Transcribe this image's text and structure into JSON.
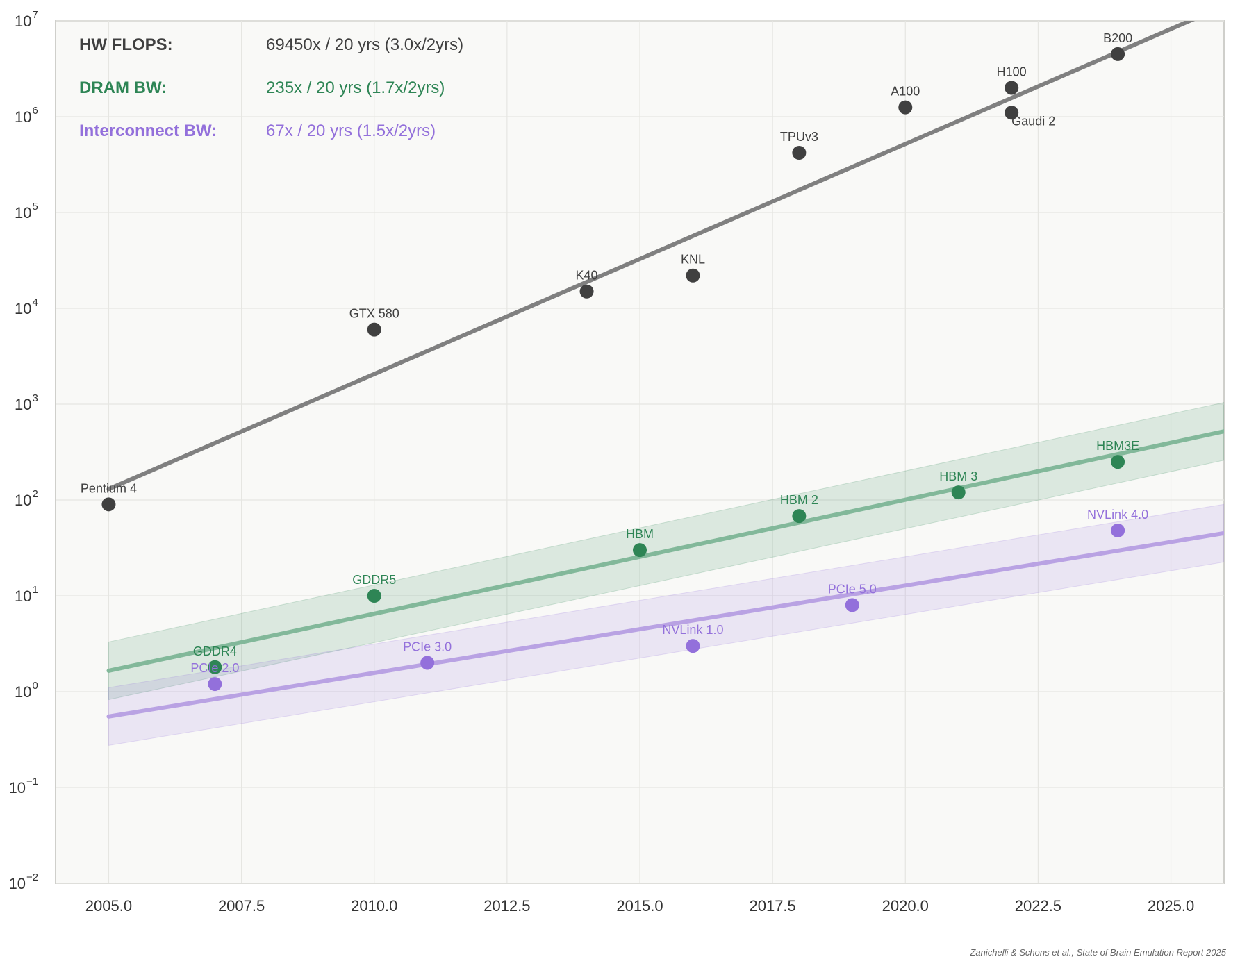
{
  "chart_data": {
    "type": "scatter",
    "yscale": "log",
    "xlim": [
      2004,
      2026
    ],
    "ylim": [
      0.01,
      10000000
    ],
    "x_ticks": [
      2005.0,
      2007.5,
      2010.0,
      2012.5,
      2015.0,
      2017.5,
      2020.0,
      2022.5,
      2025.0
    ],
    "x_tick_labels": [
      "2005.0",
      "2007.5",
      "2010.0",
      "2012.5",
      "2015.0",
      "2017.5",
      "2020.0",
      "2022.5",
      "2025.0"
    ],
    "y_tick_exponents": [
      -2,
      -1,
      0,
      1,
      2,
      3,
      4,
      5,
      6,
      7
    ],
    "y_tick_base": "10",
    "y_tick_exponent_labels": [
      "−2",
      "−1",
      "0",
      "1",
      "2",
      "3",
      "4",
      "5",
      "6",
      "7"
    ],
    "grid": true,
    "legend_placement": "top-left",
    "series": [
      {
        "name": "HW FLOPS:",
        "summary": "69450x / 20 yrs (3.0x/2yrs)",
        "color": "#404040",
        "trend_color": "#808080",
        "band": false,
        "trend": {
          "x": [
            2005,
            2026
          ],
          "y": [
            130,
            14300000
          ]
        },
        "points": [
          {
            "x": 2005,
            "y": 90,
            "label": "Pentium 4"
          },
          {
            "x": 2010,
            "y": 6000,
            "label": "GTX 580"
          },
          {
            "x": 2014,
            "y": 15000,
            "label": "K40"
          },
          {
            "x": 2016,
            "y": 22000,
            "label": "KNL"
          },
          {
            "x": 2018,
            "y": 420000,
            "label": "TPUv3"
          },
          {
            "x": 2020,
            "y": 1250000,
            "label": "A100"
          },
          {
            "x": 2022,
            "y": 2000000,
            "label": "H100"
          },
          {
            "x": 2022,
            "y": 1100000,
            "label": "Gaudi 2"
          },
          {
            "x": 2024,
            "y": 4500000,
            "label": "B200"
          }
        ]
      },
      {
        "name": "DRAM BW:",
        "summary": "235x / 20 yrs (1.7x/2yrs)",
        "color": "#2e8555",
        "trend_color": "#82b89a",
        "band": true,
        "band_color": "#2e8555",
        "band_factor": 2,
        "trend": {
          "x": [
            2005,
            2026
          ],
          "y": [
            1.65,
            520
          ]
        },
        "points": [
          {
            "x": 2007,
            "y": 1.8,
            "label": "GDDR4"
          },
          {
            "x": 2010,
            "y": 10,
            "label": "GDDR5"
          },
          {
            "x": 2015,
            "y": 30,
            "label": "HBM"
          },
          {
            "x": 2018,
            "y": 68,
            "label": "HBM 2"
          },
          {
            "x": 2021,
            "y": 120,
            "label": "HBM 3"
          },
          {
            "x": 2024,
            "y": 250,
            "label": "HBM3E"
          }
        ]
      },
      {
        "name": "Interconnect BW:",
        "summary": "67x / 20 yrs (1.5x/2yrs)",
        "color": "#9370db",
        "trend_color": "#b9a2e3",
        "band": true,
        "band_color": "#9370db",
        "band_factor": 2,
        "trend": {
          "x": [
            2005,
            2026
          ],
          "y": [
            0.55,
            45
          ]
        },
        "points": [
          {
            "x": 2007,
            "y": 1.2,
            "label": "PCIe 2.0"
          },
          {
            "x": 2011,
            "y": 2,
            "label": "PCIe 3.0"
          },
          {
            "x": 2016,
            "y": 3,
            "label": "NVLink 1.0"
          },
          {
            "x": 2019,
            "y": 8,
            "label": "PCIe 5.0"
          },
          {
            "x": 2024,
            "y": 48,
            "label": "NVLink 4.0"
          }
        ]
      }
    ]
  },
  "credit": "Zanichelli & Schons et al., State of Brain Emulation Report 2025"
}
